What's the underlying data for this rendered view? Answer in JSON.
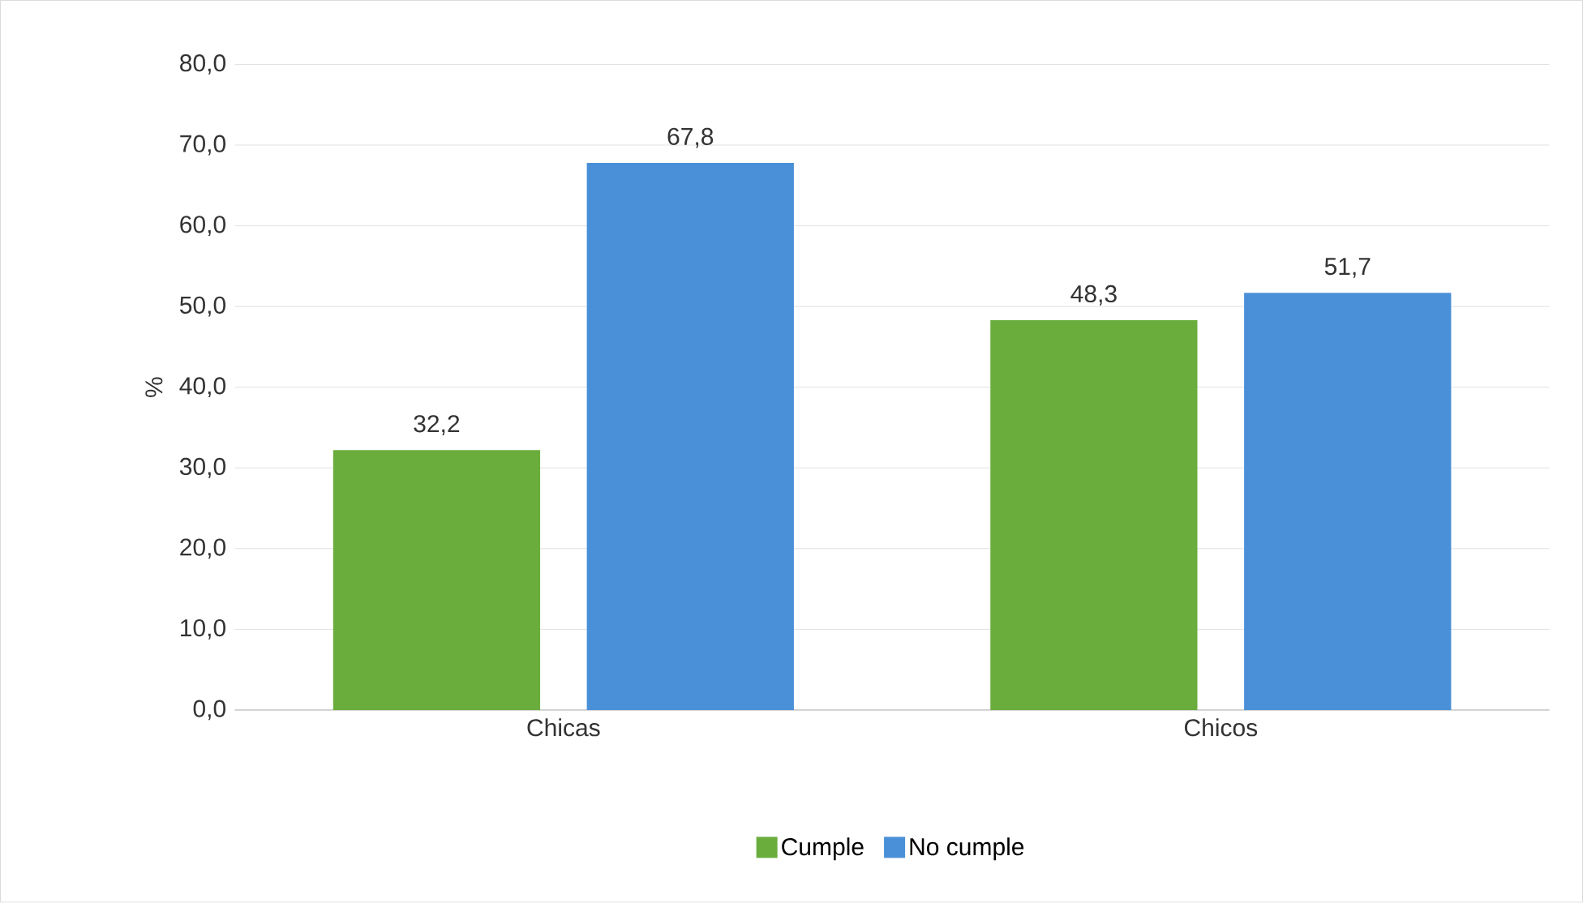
{
  "chart_data": {
    "type": "bar",
    "ylabel": "%",
    "categories": [
      "Chicas",
      "Chicos"
    ],
    "series": [
      {
        "name": "Cumple",
        "color": "#6aad3d",
        "values": [
          32.2,
          48.3
        ],
        "value_labels": [
          "32,2",
          "48,3"
        ]
      },
      {
        "name": "No cumple",
        "color": "#4a90d8",
        "values": [
          67.8,
          51.7
        ],
        "value_labels": [
          "67,8",
          "51,7"
        ]
      }
    ],
    "ylim": [
      0,
      80
    ],
    "yticks": [
      {
        "value": 0,
        "label": "0,0"
      },
      {
        "value": 10,
        "label": "10,0"
      },
      {
        "value": 20,
        "label": "20,0"
      },
      {
        "value": 30,
        "label": "30,0"
      },
      {
        "value": 40,
        "label": "40,0"
      },
      {
        "value": 50,
        "label": "50,0"
      },
      {
        "value": 60,
        "label": "60,0"
      },
      {
        "value": 70,
        "label": "70,0"
      },
      {
        "value": 80,
        "label": "80,0"
      }
    ],
    "grid": "y",
    "legend": "bottom"
  }
}
